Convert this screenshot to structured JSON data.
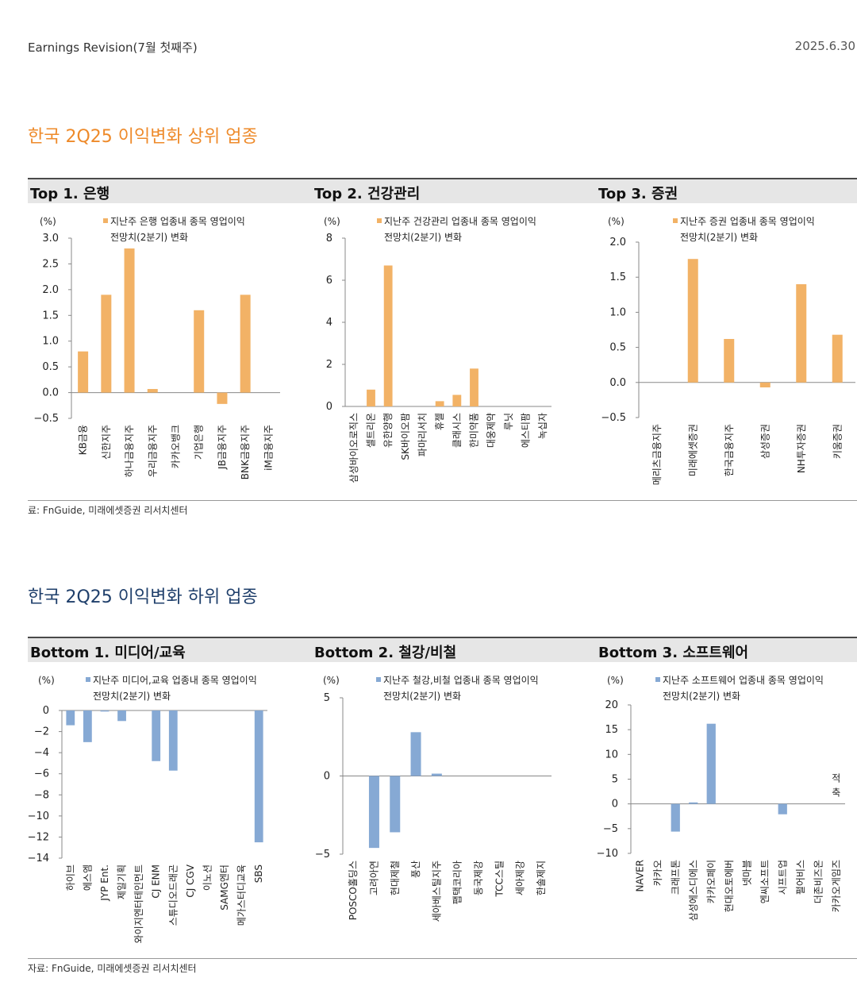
{
  "header": {
    "left": "Earnings Revision(7월 첫째주)",
    "right": "2025.6.30"
  },
  "sections": [
    {
      "title": "한국 2Q25 이익변화 상위 업종",
      "source": "료: FnGuide, 미래에셋증권 리서치센터",
      "panels": [
        {
          "heading": "Top 1. 은행"
        },
        {
          "heading": "Top 2. 건강관리"
        },
        {
          "heading": "Top 3. 증권"
        }
      ]
    },
    {
      "title": "한국 2Q25 이익변화 하위 업종",
      "source": "자료: FnGuide, 미래에셋증권 리서치센터",
      "panels": [
        {
          "heading": "Bottom 1. 미디어/교육"
        },
        {
          "heading": "Bottom 2. 철강/비철"
        },
        {
          "heading": "Bottom 3. 소프트웨어"
        }
      ]
    }
  ],
  "colors": {
    "top_bar": "#f2b266",
    "bottom_bar": "#86a9d4"
  },
  "chart_data": [
    {
      "type": "bar",
      "unit": "(%)",
      "legend": [
        "지난주 은행 업종내 종목 영업이익",
        "전망치(2분기) 변화"
      ],
      "categories": [
        "KB금융",
        "신한지주",
        "하나금융지주",
        "우리금융지주",
        "카카오뱅크",
        "기업은행",
        "JB금융지주",
        "BNK금융지주",
        "iM금융지주"
      ],
      "values": [
        0.8,
        1.9,
        2.8,
        0.07,
        0.0,
        1.6,
        -0.22,
        1.9,
        0.0
      ],
      "ylim": [
        -0.5,
        3.0
      ],
      "yticks": [
        "3.0",
        "2.5",
        "2.0",
        "1.5",
        "1.0",
        "0.5",
        "0.0",
        "−0.5"
      ]
    },
    {
      "type": "bar",
      "unit": "(%)",
      "legend": [
        "지난주 건강관리 업종내 종목 영업이익",
        "전망치(2분기) 변화"
      ],
      "categories": [
        "삼성바이오로직스",
        "셀트리온",
        "유한양행",
        "SK바이오팜",
        "파마리서치",
        "휴젤",
        "클래시스",
        "한미약품",
        "대웅제약",
        "루닛",
        "에스티팜",
        "녹십자"
      ],
      "values": [
        0.0,
        0.8,
        6.7,
        0.0,
        0.0,
        0.25,
        0.55,
        1.8,
        0.0,
        0.0,
        0.0,
        0.0
      ],
      "ylim": [
        0,
        8
      ],
      "yticks": [
        "8",
        "6",
        "4",
        "2",
        "0"
      ]
    },
    {
      "type": "bar",
      "unit": "(%)",
      "legend": [
        "지난주 증권 업종내 종목 영업이익",
        "전망치(2분기) 변화"
      ],
      "categories": [
        "메리츠금융지주",
        "미래에셋증권",
        "한국금융지주",
        "삼성증권",
        "NH투자증권",
        "키움증권"
      ],
      "values": [
        0.0,
        1.76,
        0.62,
        -0.07,
        1.4,
        0.68
      ],
      "ylim": [
        -0.5,
        2.0
      ],
      "yticks": [
        "2.0",
        "1.5",
        "1.0",
        "0.5",
        "0.0",
        "−0.5"
      ]
    },
    {
      "type": "bar",
      "unit": "(%)",
      "legend": [
        "지난주 미디어,교육 업종내 종목 영업이익",
        "전망치(2분기) 변화"
      ],
      "categories": [
        "하이브",
        "에스엠",
        "JYP Ent.",
        "제일기획",
        "와이지엔터테인먼트",
        "CJ ENM",
        "스튜디오드래곤",
        "CJ CGV",
        "이노션",
        "SAMG엔터",
        "메가스터디교육",
        "SBS"
      ],
      "values": [
        -1.4,
        -3.0,
        -0.1,
        -1.0,
        0.0,
        -4.8,
        -5.7,
        0.0,
        0.0,
        0.0,
        0.0,
        -12.5
      ],
      "ylim": [
        -14,
        0
      ],
      "yticks": [
        "0",
        "−2",
        "−4",
        "−6",
        "−8",
        "−10",
        "−12",
        "−14"
      ]
    },
    {
      "type": "bar",
      "unit": "(%)",
      "legend": [
        "지난주 철강,비철 업종내 종목 영업이익",
        "전망치(2분기) 변화"
      ],
      "categories": [
        "POSCO홀딩스",
        "고려아연",
        "현대제철",
        "풍산",
        "세아베스틸지주",
        "팹택코리아",
        "동국제강",
        "TCC스틸",
        "세아제강",
        "한솔제지"
      ],
      "values": [
        0.0,
        -4.6,
        -3.6,
        2.8,
        0.15,
        0.0,
        0.0,
        0.0,
        0.0,
        0.0
      ],
      "ylim": [
        -5,
        5
      ],
      "yticks": [
        "5",
        "0",
        "−5"
      ]
    },
    {
      "type": "bar",
      "unit": "(%)",
      "legend": [
        "지난주 소프트웨어 업종내 종목 영업이익",
        "전망치(2분기) 변화"
      ],
      "categories": [
        "NAVER",
        "카카오",
        "크래프톤",
        "삼성에스디에스",
        "카카오페이",
        "현대오토에버",
        "넷마블",
        "엔씨소프트",
        "시프트업",
        "펄어비스",
        "더존비즈온",
        "카카오게임즈"
      ],
      "values": [
        0.0,
        0.0,
        -5.6,
        0.3,
        16.2,
        0.0,
        0.0,
        0.0,
        -2.1,
        0.0,
        0.0,
        0.0
      ],
      "ylim": [
        -10,
        20
      ],
      "yticks": [
        "20",
        "15",
        "10",
        "5",
        "0",
        "−5",
        "−10"
      ],
      "annotation": {
        "label": "적축",
        "category": "카카오게임즈"
      }
    }
  ]
}
